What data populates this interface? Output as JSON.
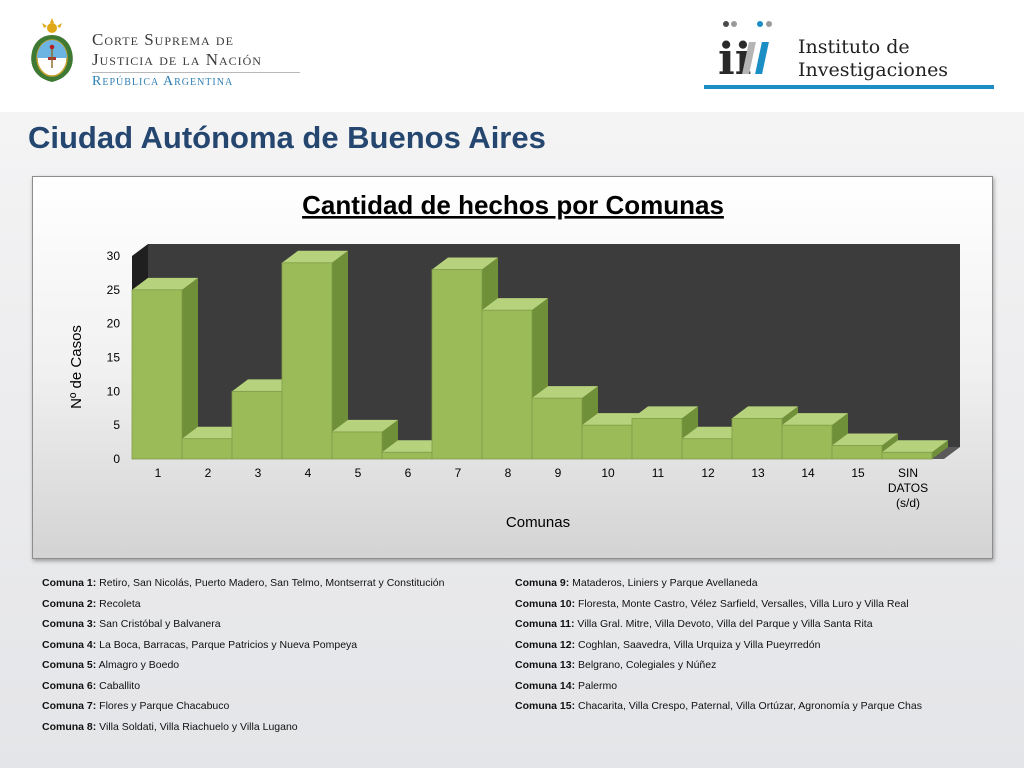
{
  "header": {
    "csjn_line1": "Corte Suprema de",
    "csjn_line2": "Justicia de la Nación",
    "csjn_line3": "República Argentina",
    "ii_line1": "Instituto de",
    "ii_line2": "Investigaciones",
    "ii_logo_text": "ii"
  },
  "page_title": "Ciudad Autónoma de Buenos Aires",
  "colors": {
    "title_blue": "#24466f",
    "accent_blue": "#1b8fc3",
    "bar_front": "#9bbb59",
    "bar_side": "#6f8f38",
    "bar_top": "#b7d27c",
    "plot_back": "#3c3c3c"
  },
  "chart_data": {
    "type": "bar",
    "title": "Cantidad de hechos por Comunas",
    "xlabel": "Comunas",
    "ylabel": "Nº de Casos",
    "categories": [
      "1",
      "2",
      "3",
      "4",
      "5",
      "6",
      "7",
      "8",
      "9",
      "10",
      "11",
      "12",
      "13",
      "14",
      "15",
      "SIN DATOS (s/d)"
    ],
    "category_lines": [
      [
        "1"
      ],
      [
        "2"
      ],
      [
        "3"
      ],
      [
        "4"
      ],
      [
        "5"
      ],
      [
        "6"
      ],
      [
        "7"
      ],
      [
        "8"
      ],
      [
        "9"
      ],
      [
        "10"
      ],
      [
        "11"
      ],
      [
        "12"
      ],
      [
        "13"
      ],
      [
        "14"
      ],
      [
        "15"
      ],
      [
        "SIN",
        "DATOS",
        "(s/d)"
      ]
    ],
    "values": [
      25,
      3,
      10,
      29,
      4,
      1,
      28,
      22,
      9,
      5,
      6,
      3,
      6,
      5,
      2,
      1
    ],
    "ylim": [
      0,
      30
    ],
    "yticks": [
      0,
      5,
      10,
      15,
      20,
      25,
      30
    ],
    "style": "3d-column",
    "grid": false,
    "legend": "none"
  },
  "legend_left": [
    {
      "label": "Comuna 1:",
      "text": "Retiro, San Nicolás, Puerto Madero, San Telmo, Montserrat y Constitución"
    },
    {
      "label": "Comuna 2:",
      "text": "Recoleta"
    },
    {
      "label": "Comuna 3:",
      "text": "San Cristóbal y Balvanera"
    },
    {
      "label": "Comuna 4:",
      "text": "La Boca, Barracas, Parque Patricios y Nueva Pompeya"
    },
    {
      "label": "Comuna 5:",
      "text": "Almagro y Boedo"
    },
    {
      "label": "Comuna 6:",
      "text": "Caballito"
    },
    {
      "label": "Comuna 7:",
      "text": "Flores y Parque Chacabuco"
    },
    {
      "label": "Comuna 8:",
      "text": "Villa Soldati, Villa Riachuelo y Villa Lugano"
    }
  ],
  "legend_right": [
    {
      "label": "Comuna 9:",
      "text": "Mataderos, Liniers y Parque Avellaneda"
    },
    {
      "label": "Comuna 10:",
      "text": "Floresta, Monte Castro, Vélez Sarfield, Versalles, Villa Luro y Villa Real"
    },
    {
      "label": "Comuna 11:",
      "text": "Villa Gral. Mitre, Villa Devoto, Villa del Parque y Villa Santa Rita"
    },
    {
      "label": "Comuna 12:",
      "text": "Coghlan, Saavedra, Villa Urquiza y Villa Pueyrredón"
    },
    {
      "label": "Comuna 13:",
      "text": "Belgrano, Colegiales y Núñez"
    },
    {
      "label": "Comuna 14:",
      "text": "Palermo"
    },
    {
      "label": "Comuna 15:",
      "text": "Chacarita, Villa Crespo, Paternal, Villa Ortúzar, Agronomía y Parque Chas"
    }
  ]
}
